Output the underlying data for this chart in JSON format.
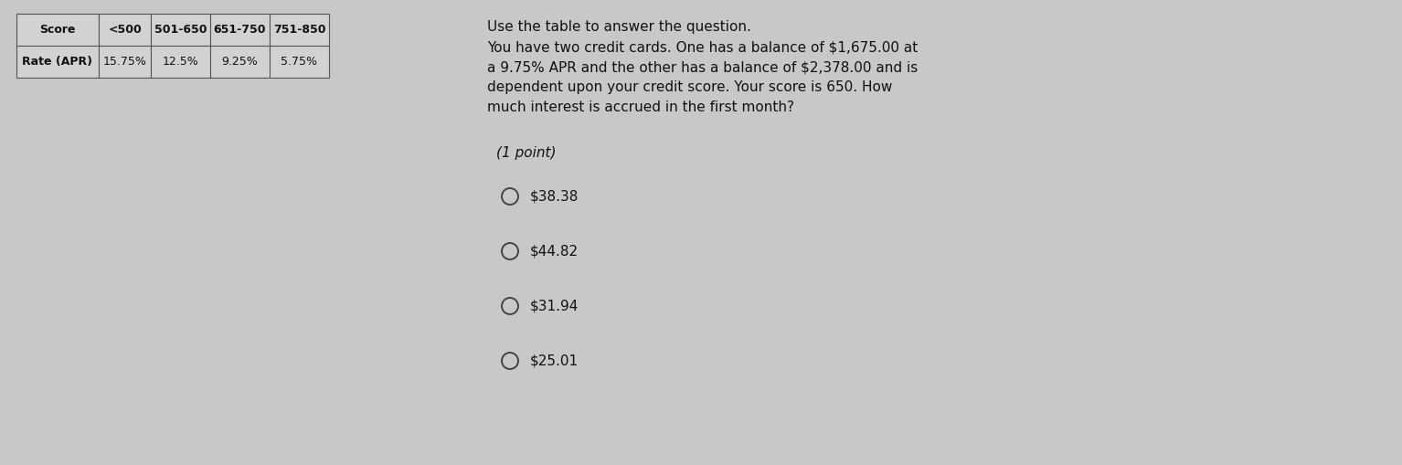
{
  "background_color": "#c8c8c8",
  "table_headers": [
    "Score",
    "<500",
    "501-650",
    "651-750",
    "751-850"
  ],
  "table_row_label": "Rate (APR)",
  "table_row_values": [
    "15.75%",
    "12.5%",
    "9.25%",
    "5.75%"
  ],
  "question_lines": [
    "Use the table to answer the question.",
    "You have two credit cards. One has a balance of $1,675.00 at",
    "a 9.75% APR and the other has a balance of $2,378.00 and is",
    "dependent upon your credit score. Your score is 650. How",
    "much interest is accrued in the first month?"
  ],
  "point_label": "(1 point)",
  "choices": [
    "$38.38",
    "$44.82",
    "$31.94",
    "$25.01"
  ],
  "text_color": "#111111",
  "table_border_color": "#555555",
  "table_face_color": "#d2d2d2",
  "fig_width": 15.34,
  "fig_height": 5.09,
  "dpi": 100
}
